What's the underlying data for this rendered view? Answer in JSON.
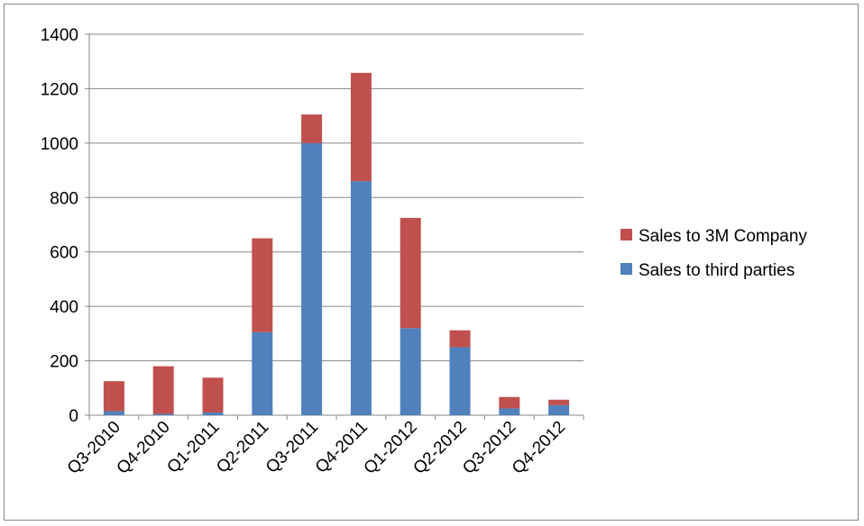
{
  "chart_data": {
    "type": "bar",
    "stacked": true,
    "title": "",
    "xlabel": "",
    "ylabel": "",
    "ylim": [
      0,
      1400
    ],
    "yticks": [
      0,
      200,
      400,
      600,
      800,
      1000,
      1200,
      1400
    ],
    "grid": true,
    "legend_position": "right",
    "categories": [
      "Q3-2010",
      "Q4-2010",
      "Q1-2011",
      "Q2-2011",
      "Q3-2011",
      "Q4-2011",
      "Q1-2012",
      "Q2-2012",
      "Q3-2012",
      "Q4-2012"
    ],
    "series": [
      {
        "name": "Sales to third parties",
        "color": "#4F81BD",
        "values": [
          15,
          5,
          10,
          305,
          1000,
          860,
          320,
          250,
          25,
          37
        ]
      },
      {
        "name": "Sales to 3M Company",
        "color": "#C0504D",
        "values": [
          110,
          175,
          128,
          345,
          105,
          398,
          405,
          62,
          42,
          20
        ]
      }
    ],
    "legend_order": [
      "Sales to 3M Company",
      "Sales to third parties"
    ]
  }
}
